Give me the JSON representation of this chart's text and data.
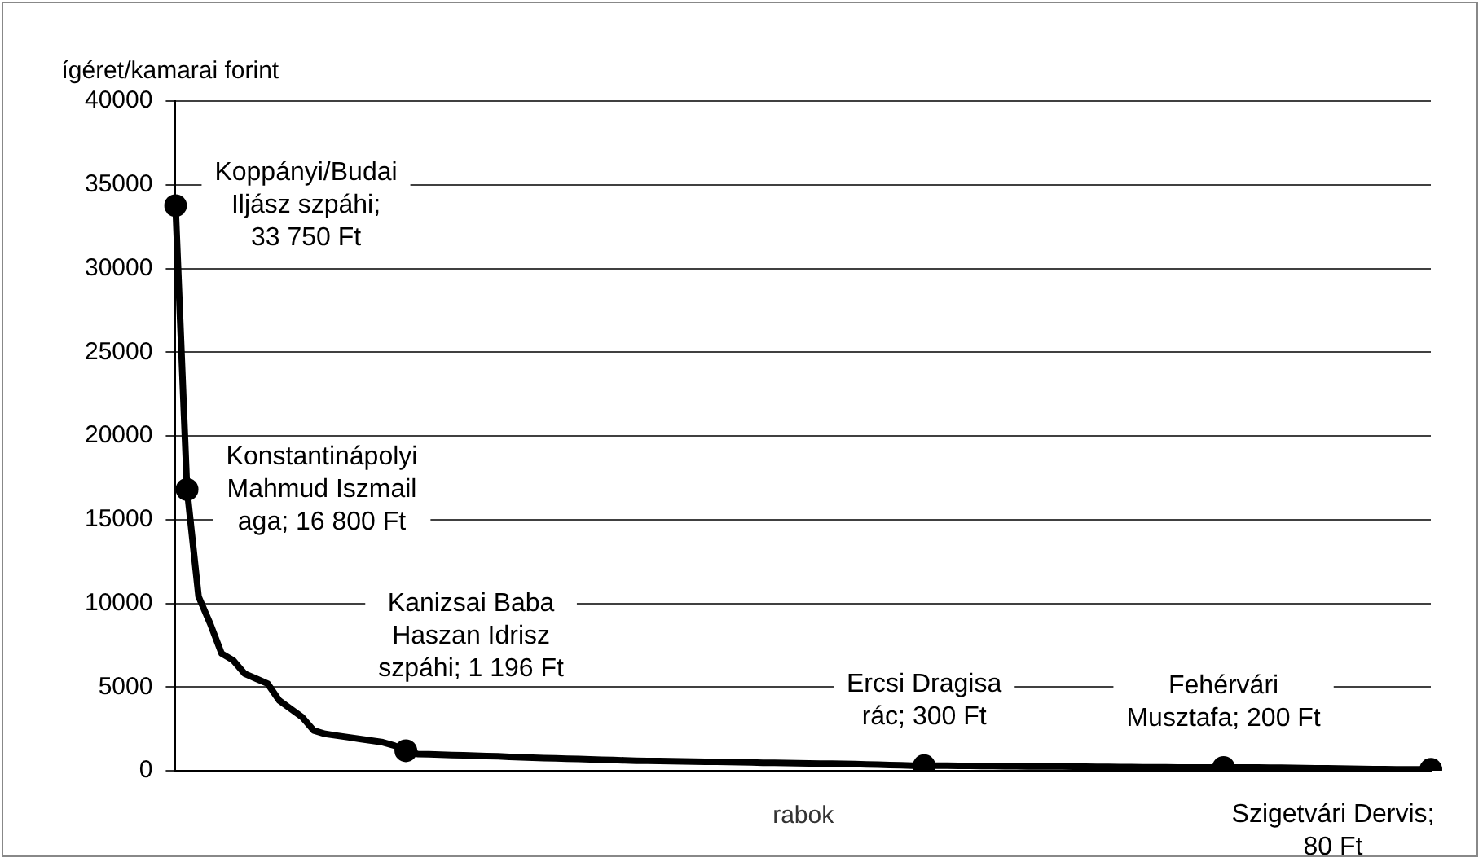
{
  "chart_data": {
    "type": "line",
    "ylabel": "ígéret/kamarai forint",
    "xlabel": "rabok",
    "categories": [
      null,
      null,
      null,
      null,
      null,
      null,
      null,
      null,
      null,
      null,
      null,
      null,
      null,
      null,
      null,
      null,
      null,
      null,
      null,
      null,
      null,
      null,
      null,
      null,
      null,
      null,
      null,
      null,
      null,
      null,
      null,
      null,
      null,
      null,
      null,
      null,
      null,
      null,
      null,
      null,
      null,
      null,
      null,
      null,
      null,
      null,
      null,
      null,
      null,
      null,
      null,
      null,
      null,
      null,
      null,
      null,
      null,
      null,
      null,
      null,
      null,
      null,
      null,
      null,
      null,
      null,
      null,
      null,
      null,
      null,
      null,
      null,
      null,
      null,
      null,
      null,
      null,
      null,
      null,
      null,
      null,
      null,
      null,
      null,
      null,
      null,
      null,
      null,
      null,
      null,
      null,
      null,
      null,
      null,
      null,
      null,
      null,
      null,
      null,
      null,
      null,
      null,
      null,
      null,
      null,
      null,
      null,
      null,
      null,
      null
    ],
    "series": [
      {
        "color": "#000000",
        "values": [
          33750,
          16800,
          10400,
          8800,
          7000,
          6600,
          5800,
          5500,
          5200,
          4200,
          3700,
          3200,
          2400,
          2200,
          2100,
          2000,
          1900,
          1800,
          1700,
          1500,
          1196,
          1000,
          980,
          960,
          940,
          920,
          900,
          880,
          860,
          830,
          800,
          780,
          760,
          740,
          720,
          700,
          680,
          660,
          640,
          620,
          600,
          590,
          580,
          570,
          560,
          550,
          540,
          530,
          520,
          510,
          500,
          480,
          470,
          460,
          450,
          440,
          430,
          420,
          410,
          400,
          380,
          360,
          340,
          330,
          310,
          300,
          300,
          300,
          290,
          290,
          280,
          280,
          270,
          270,
          260,
          260,
          250,
          250,
          240,
          240,
          230,
          230,
          220,
          220,
          210,
          210,
          210,
          200,
          200,
          200,
          200,
          200,
          200,
          190,
          190,
          180,
          180,
          170,
          160,
          150,
          140,
          130,
          120,
          110,
          100,
          100,
          90,
          90,
          80,
          80
        ],
        "value_labels": [
          "Koppányi/Budai\nIljász szpáhi;\n33 750 Ft",
          "Konstantinápolyi\nMahmud Iszmail\naga; 16 800 Ft",
          null,
          null,
          null,
          null,
          null,
          null,
          null,
          null,
          null,
          null,
          null,
          null,
          null,
          null,
          null,
          null,
          null,
          null,
          "Kanizsai Baba\nHaszan Idrisz\nszpáhi; 1 196 Ft",
          null,
          null,
          null,
          null,
          null,
          null,
          null,
          null,
          null,
          null,
          null,
          null,
          null,
          null,
          null,
          null,
          null,
          null,
          null,
          null,
          null,
          null,
          null,
          null,
          null,
          null,
          null,
          null,
          null,
          null,
          null,
          null,
          null,
          null,
          null,
          null,
          null,
          null,
          null,
          null,
          null,
          null,
          null,
          null,
          "Ercsi Dragisa\nrác; 300 Ft",
          null,
          null,
          null,
          null,
          null,
          null,
          null,
          null,
          null,
          null,
          null,
          null,
          null,
          null,
          null,
          null,
          null,
          null,
          null,
          null,
          null,
          null,
          null,
          null,
          null,
          "Fehérvári\nMusztafa; 200 Ft",
          null,
          null,
          null,
          null,
          null,
          null,
          null,
          null,
          null,
          null,
          null,
          null,
          null,
          null,
          null,
          null,
          null,
          "Szigetvári Dervis;\n80 Ft"
        ]
      }
    ],
    "ylim": [
      0,
      40000
    ],
    "yticks": [
      0,
      5000,
      10000,
      15000,
      20000,
      25000,
      30000,
      35000,
      40000
    ],
    "tick_labels": "y",
    "grid": "y",
    "legend": false,
    "line_style": "solid"
  }
}
